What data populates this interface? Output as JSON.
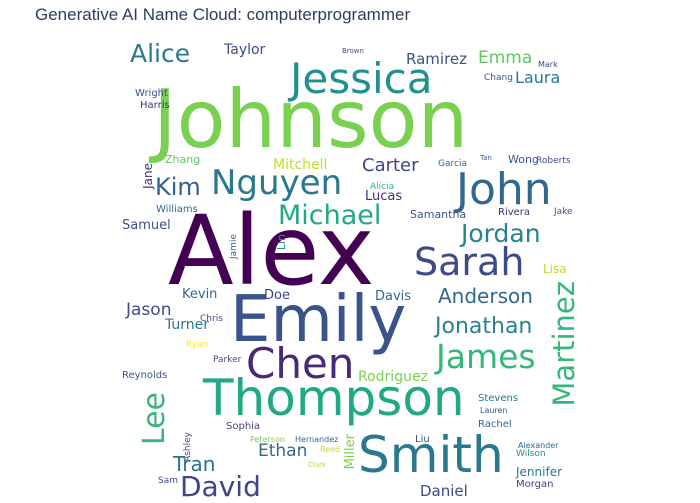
{
  "title": "Generative AI Name Cloud: computerprogrammer",
  "words": [
    {
      "text": "Johnson",
      "color": "#7ad151"
    },
    {
      "text": "Alex",
      "color": "#440154"
    },
    {
      "text": "Emily",
      "color": "#3b528b"
    },
    {
      "text": "Jessica",
      "color": "#21918c"
    },
    {
      "text": "Thompson",
      "color": "#22a884"
    },
    {
      "text": "Smith",
      "color": "#2a788e"
    },
    {
      "text": "John",
      "color": "#31688e"
    },
    {
      "text": "Chen",
      "color": "#482878"
    },
    {
      "text": "Sarah",
      "color": "#3e4a89"
    },
    {
      "text": "Nguyen",
      "color": "#2a788e"
    },
    {
      "text": "Michael",
      "color": "#22a884"
    },
    {
      "text": "James",
      "color": "#35b779"
    },
    {
      "text": "Jordan",
      "color": "#26828e"
    },
    {
      "text": "Martinez",
      "color": "#35b779"
    },
    {
      "text": "David",
      "color": "#414487"
    },
    {
      "text": "Kim",
      "color": "#355f8d"
    },
    {
      "text": "Lee",
      "color": "#35b779"
    },
    {
      "text": "Alice",
      "color": "#2a788e"
    },
    {
      "text": "Jonathan",
      "color": "#26828e"
    },
    {
      "text": "Anderson",
      "color": "#31688e"
    },
    {
      "text": "Tran",
      "color": "#2c728e"
    },
    {
      "text": "Carter",
      "color": "#414487"
    },
    {
      "text": "Laura",
      "color": "#2a788e"
    },
    {
      "text": "Emma",
      "color": "#5ec962"
    },
    {
      "text": "Ramirez",
      "color": "#3b528b"
    },
    {
      "text": "Ethan",
      "color": "#31688e"
    },
    {
      "text": "Daniel",
      "color": "#3e4a89"
    },
    {
      "text": "Jason",
      "color": "#3e4a89"
    },
    {
      "text": "Rodriguez",
      "color": "#7ad151"
    },
    {
      "text": "Mitchell",
      "color": "#bddf26"
    },
    {
      "text": "Taylor",
      "color": "#3e4a89"
    },
    {
      "text": "Samuel",
      "color": "#3b528b"
    },
    {
      "text": "Turner",
      "color": "#2a788e"
    },
    {
      "text": "Kevin",
      "color": "#31688e"
    },
    {
      "text": "Doe",
      "color": "#414487"
    },
    {
      "text": "Davis",
      "color": "#31688e"
    },
    {
      "text": "Lucas",
      "color": "#472d7b"
    },
    {
      "text": "Samantha",
      "color": "#3b528b"
    },
    {
      "text": "Jennifer",
      "color": "#2a788e"
    },
    {
      "text": "Wright",
      "color": "#3b528b"
    },
    {
      "text": "Harris",
      "color": "#472d7b"
    },
    {
      "text": "Zhang",
      "color": "#5ec962"
    },
    {
      "text": "Williams",
      "color": "#31688e"
    },
    {
      "text": "Wong",
      "color": "#3b528b"
    },
    {
      "text": "Roberts",
      "color": "#3e4a89"
    },
    {
      "text": "Rivera",
      "color": "#482878"
    },
    {
      "text": "Stevens",
      "color": "#2a788e"
    },
    {
      "text": "Rachel",
      "color": "#31688e"
    },
    {
      "text": "Sophia",
      "color": "#414487"
    },
    {
      "text": "Reynolds",
      "color": "#3b528b"
    },
    {
      "text": "Morgan",
      "color": "#414487"
    },
    {
      "text": "Lisa",
      "color": "#bddf26"
    },
    {
      "text": "Chris",
      "color": "#3e4a89"
    },
    {
      "text": "Ryan",
      "color": "#fde725"
    },
    {
      "text": "Parker",
      "color": "#3e4a89"
    },
    {
      "text": "Alicia",
      "color": "#35b779"
    },
    {
      "text": "Jake",
      "color": "#3b528b"
    },
    {
      "text": "Liu",
      "color": "#3e4a89"
    },
    {
      "text": "Wilson",
      "color": "#21918c"
    },
    {
      "text": "Alexander",
      "color": "#31688e"
    },
    {
      "text": "Miller",
      "color": "#7ad151"
    },
    {
      "text": "Chang",
      "color": "#3b528b"
    },
    {
      "text": "Mark",
      "color": "#3e4a89"
    },
    {
      "text": "Garcia",
      "color": "#31688e"
    },
    {
      "text": "Jane",
      "color": "#472d7b"
    },
    {
      "text": "Lin",
      "color": "#21918c"
    },
    {
      "text": "Jamie",
      "color": "#31688e"
    },
    {
      "text": "Ashley",
      "color": "#3e4a89"
    },
    {
      "text": "Peterson",
      "color": "#7ad151"
    },
    {
      "text": "Hernandez",
      "color": "#31688e"
    },
    {
      "text": "Reed",
      "color": "#bddf26"
    },
    {
      "text": "Sam",
      "color": "#3e4a89"
    },
    {
      "text": "Lauren",
      "color": "#3b528b"
    },
    {
      "text": "Brown",
      "color": "#3e4a89"
    },
    {
      "text": "Clark",
      "color": "#bddf26"
    },
    {
      "text": "Tan",
      "color": "#3b528b"
    }
  ]
}
